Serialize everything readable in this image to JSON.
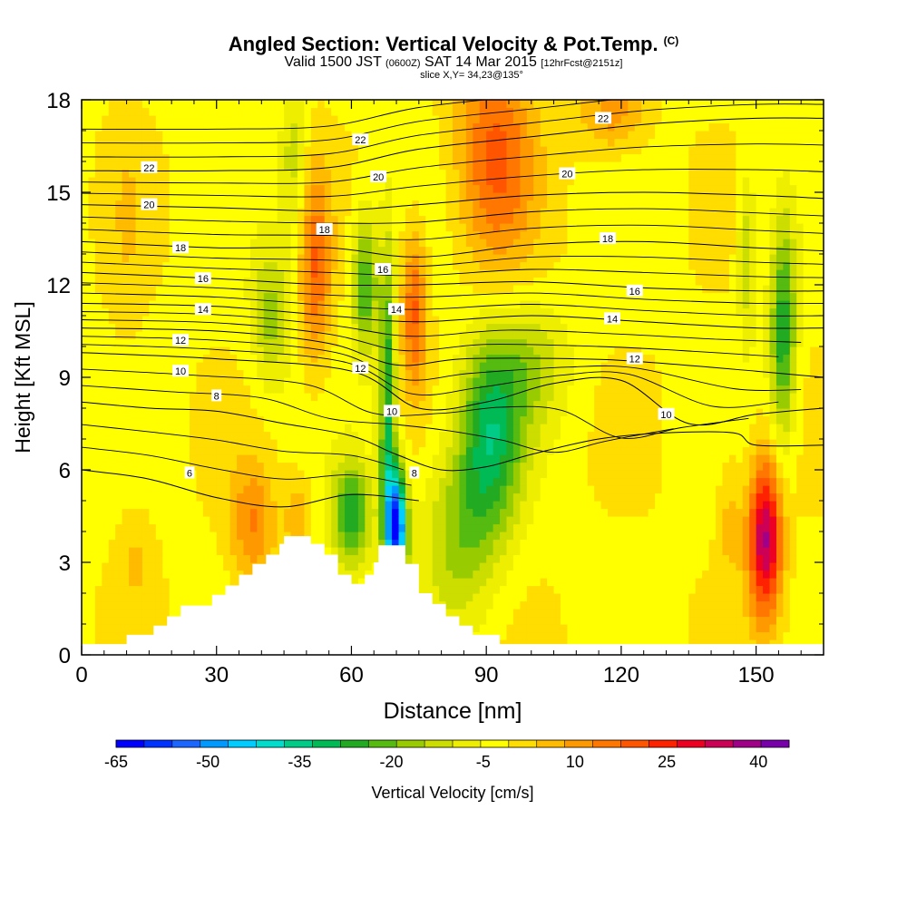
{
  "title": {
    "main": "Angled Section: Vertical Velocity & Pot.Temp.",
    "units": "(C)",
    "valid_prefix": "Valid 1500 JST",
    "valid_utc": "(0600Z)",
    "valid_date": "SAT 14 Mar 2015",
    "forecast": "[12hrFcst@2151z]",
    "slice": "slice X,Y= 34,23@135°"
  },
  "chart_data": {
    "type": "heatmap",
    "xlabel": "Distance [nm]",
    "ylabel": "Height [Kft MSL]",
    "xlim": [
      0,
      165
    ],
    "ylim": [
      0,
      18
    ],
    "x_ticks": [
      0,
      30,
      60,
      90,
      120,
      150
    ],
    "y_ticks": [
      0,
      3,
      6,
      9,
      12,
      15,
      18
    ],
    "terrain": [
      [
        0,
        0.35
      ],
      [
        10,
        0.35
      ],
      [
        10,
        0.65
      ],
      [
        16,
        0.65
      ],
      [
        16,
        0.95
      ],
      [
        19,
        0.95
      ],
      [
        19,
        1.25
      ],
      [
        22,
        1.25
      ],
      [
        22,
        1.6
      ],
      [
        29,
        1.6
      ],
      [
        29,
        1.95
      ],
      [
        32,
        1.95
      ],
      [
        32,
        2.25
      ],
      [
        35,
        2.25
      ],
      [
        35,
        2.6
      ],
      [
        38,
        2.6
      ],
      [
        38,
        2.95
      ],
      [
        41,
        2.95
      ],
      [
        41,
        3.25
      ],
      [
        44,
        3.25
      ],
      [
        44,
        3.6
      ],
      [
        45,
        3.6
      ],
      [
        45,
        3.85
      ],
      [
        51,
        3.85
      ],
      [
        51,
        3.6
      ],
      [
        54,
        3.6
      ],
      [
        54,
        3.25
      ],
      [
        57,
        3.25
      ],
      [
        57,
        2.6
      ],
      [
        60,
        2.6
      ],
      [
        60,
        2.3
      ],
      [
        63,
        2.3
      ],
      [
        63,
        2.6
      ],
      [
        65,
        2.6
      ],
      [
        65,
        3.0
      ],
      [
        66,
        3.0
      ],
      [
        66,
        3.55
      ],
      [
        72,
        3.55
      ],
      [
        72,
        2.95
      ],
      [
        75,
        2.95
      ],
      [
        75,
        2.0
      ],
      [
        78,
        2.0
      ],
      [
        78,
        1.65
      ],
      [
        81,
        1.65
      ],
      [
        81,
        1.25
      ],
      [
        84,
        1.25
      ],
      [
        84,
        0.95
      ],
      [
        87,
        0.95
      ],
      [
        87,
        0.65
      ],
      [
        93,
        0.65
      ],
      [
        93,
        0.35
      ],
      [
        165,
        0.35
      ]
    ],
    "colorbar": {
      "label": "Vertical Velocity [cm/s]",
      "tick_labels": [
        "-65",
        "-50",
        "-35",
        "-20",
        "-5",
        "10",
        "25",
        "40"
      ],
      "min": -65,
      "max": 45,
      "step": 5,
      "colors": [
        "#0000ff",
        "#0033ff",
        "#1a66ff",
        "#0099ff",
        "#00ccff",
        "#00ddcc",
        "#00cc88",
        "#00bb55",
        "#22aa22",
        "#55bb11",
        "#99cc00",
        "#ccdd00",
        "#eeee00",
        "#ffff00",
        "#ffdd00",
        "#ffbb00",
        "#ff9900",
        "#ff7700",
        "#ff5500",
        "#ff2200",
        "#ee0022",
        "#cc0055",
        "#a00088",
        "#7700aa"
      ]
    },
    "background_wind_cms": 4,
    "updrafts": [
      {
        "x": 92,
        "y": 16.2,
        "sx": 6,
        "sy": 2.6,
        "amp": 22
      },
      {
        "x": 118,
        "y": 17.6,
        "sx": 5,
        "sy": 0.9,
        "amp": 14
      },
      {
        "x": 52,
        "y": 12.5,
        "sx": 2.4,
        "sy": 2.2,
        "amp": 20
      },
      {
        "x": 74,
        "y": 11.2,
        "sx": 2.0,
        "sy": 1.8,
        "amp": 22
      },
      {
        "x": 152,
        "y": 3.8,
        "sx": 2.6,
        "sy": 1.8,
        "amp": 42
      },
      {
        "x": 38,
        "y": 4.2,
        "sx": 3.5,
        "sy": 1.4,
        "amp": 16
      },
      {
        "x": 48,
        "y": 4.5,
        "sx": 2,
        "sy": 1,
        "amp": 10
      },
      {
        "x": 12,
        "y": 3.2,
        "sx": 3,
        "sy": 1.2,
        "amp": 6
      },
      {
        "x": 144,
        "y": 4.5,
        "sx": 2,
        "sy": 1.5,
        "amp": 8
      },
      {
        "x": 10,
        "y": 14,
        "sx": 3,
        "sy": 3,
        "amp": 4
      }
    ],
    "downdrafts": [
      {
        "x": 70,
        "y": 4.2,
        "sx": 1.6,
        "sy": 1.3,
        "amp": -64
      },
      {
        "x": 68,
        "y": 8,
        "sx": 1.3,
        "sy": 3.5,
        "amp": -30
      },
      {
        "x": 63,
        "y": 12,
        "sx": 2,
        "sy": 1.6,
        "amp": -24
      },
      {
        "x": 60,
        "y": 4.5,
        "sx": 3,
        "sy": 1.2,
        "amp": -28
      },
      {
        "x": 91,
        "y": 7.2,
        "sx": 5,
        "sy": 2.2,
        "amp": -30
      },
      {
        "x": 84,
        "y": 4,
        "sx": 6,
        "sy": 2,
        "amp": -16
      },
      {
        "x": 42,
        "y": 11,
        "sx": 3,
        "sy": 1.6,
        "amp": -16
      },
      {
        "x": 47,
        "y": 16,
        "sx": 2,
        "sy": 2,
        "amp": -12
      },
      {
        "x": 156,
        "y": 10.5,
        "sx": 2,
        "sy": 2.5,
        "amp": -28
      },
      {
        "x": 148,
        "y": 13,
        "sx": 1.5,
        "sy": 2,
        "amp": -14
      },
      {
        "x": 100,
        "y": 9.5,
        "sx": 6,
        "sy": 1.5,
        "amp": -12
      }
    ],
    "isentropes": [
      {
        "theta": 6,
        "label": "6",
        "points": [
          [
            0,
            6
          ],
          [
            15,
            5.7
          ],
          [
            30,
            5.1
          ],
          [
            45,
            4.8
          ],
          [
            60,
            5.2
          ],
          [
            75,
            5.0
          ]
        ]
      },
      {
        "theta": 8,
        "label": "8",
        "points": [
          [
            0,
            8.2
          ],
          [
            15,
            8
          ],
          [
            30,
            7.9
          ],
          [
            45,
            7.5
          ],
          [
            60,
            7.1
          ],
          [
            70,
            6.5
          ],
          [
            80,
            6.0
          ],
          [
            90,
            6.1
          ],
          [
            100,
            6.5
          ],
          [
            115,
            7.0
          ],
          [
            130,
            7.2
          ],
          [
            145,
            7.2
          ],
          [
            150,
            6.8
          ],
          [
            165,
            6.8
          ]
        ]
      },
      {
        "theta": 10,
        "label": "10",
        "points": [
          [
            0,
            9.8
          ],
          [
            30,
            9.6
          ],
          [
            60,
            9.2
          ],
          [
            75,
            8.0
          ],
          [
            90,
            8.2
          ],
          [
            105,
            8.8
          ],
          [
            120,
            8.9
          ],
          [
            135,
            7.5
          ],
          [
            150,
            7.8
          ],
          [
            165,
            8
          ]
        ]
      },
      {
        "theta": 12,
        "label": "12",
        "points": [
          [
            0,
            10.6
          ],
          [
            30,
            10.5
          ],
          [
            55,
            10.1
          ],
          [
            70,
            9.4
          ],
          [
            85,
            9.6
          ],
          [
            110,
            9.6
          ],
          [
            125,
            9.5
          ],
          [
            150,
            9.2
          ],
          [
            165,
            9
          ]
        ]
      },
      {
        "theta": 14,
        "label": "14",
        "points": [
          [
            0,
            11.4
          ],
          [
            30,
            11.3
          ],
          [
            55,
            11.0
          ],
          [
            75,
            10.8
          ],
          [
            100,
            11.0
          ],
          [
            125,
            10.8
          ],
          [
            150,
            10.6
          ],
          [
            165,
            10.6
          ]
        ]
      },
      {
        "theta": 16,
        "label": "16",
        "points": [
          [
            0,
            12.4
          ],
          [
            30,
            12.2
          ],
          [
            55,
            12.0
          ],
          [
            75,
            12.0
          ],
          [
            100,
            12.1
          ],
          [
            125,
            11.9
          ],
          [
            150,
            11.8
          ],
          [
            165,
            11.8
          ]
        ]
      },
      {
        "theta": 18,
        "label": "18",
        "points": [
          [
            0,
            13.4
          ],
          [
            30,
            13.2
          ],
          [
            55,
            13.2
          ],
          [
            75,
            12.9
          ],
          [
            100,
            13.3
          ],
          [
            125,
            13.4
          ],
          [
            150,
            13.2
          ],
          [
            165,
            13.1
          ]
        ]
      },
      {
        "theta": 20,
        "label": "20",
        "points": [
          [
            0,
            14.6
          ],
          [
            30,
            14.5
          ],
          [
            55,
            14.4
          ],
          [
            75,
            14.6
          ],
          [
            100,
            14.9
          ],
          [
            125,
            15.0
          ],
          [
            150,
            14.9
          ],
          [
            165,
            14.8
          ]
        ]
      },
      {
        "theta": 22,
        "label": "22",
        "points": [
          [
            0,
            15.7
          ],
          [
            30,
            15.7
          ],
          [
            55,
            15.8
          ],
          [
            75,
            16.4
          ],
          [
            100,
            16.8
          ],
          [
            125,
            17.2
          ],
          [
            150,
            17.4
          ],
          [
            165,
            17.4
          ]
        ]
      }
    ],
    "isentrope_labels": [
      {
        "text": "22",
        "x": 15,
        "y": 15.8
      },
      {
        "text": "20",
        "x": 15,
        "y": 14.6
      },
      {
        "text": "18",
        "x": 22,
        "y": 13.2
      },
      {
        "text": "16",
        "x": 27,
        "y": 12.2
      },
      {
        "text": "14",
        "x": 27,
        "y": 11.2
      },
      {
        "text": "12",
        "x": 22,
        "y": 10.2
      },
      {
        "text": "10",
        "x": 22,
        "y": 9.2
      },
      {
        "text": "8",
        "x": 30,
        "y": 8.4
      },
      {
        "text": "6",
        "x": 24,
        "y": 5.9
      },
      {
        "text": "22",
        "x": 62,
        "y": 16.7
      },
      {
        "text": "20",
        "x": 66,
        "y": 15.5
      },
      {
        "text": "18",
        "x": 54,
        "y": 13.8
      },
      {
        "text": "16",
        "x": 67,
        "y": 12.5
      },
      {
        "text": "14",
        "x": 70,
        "y": 11.2
      },
      {
        "text": "12",
        "x": 62,
        "y": 9.3
      },
      {
        "text": "10",
        "x": 69,
        "y": 7.9
      },
      {
        "text": "8",
        "x": 74,
        "y": 5.9
      },
      {
        "text": "22",
        "x": 116,
        "y": 17.4
      },
      {
        "text": "20",
        "x": 108,
        "y": 15.6
      },
      {
        "text": "18",
        "x": 117,
        "y": 13.5
      },
      {
        "text": "16",
        "x": 123,
        "y": 11.8
      },
      {
        "text": "14",
        "x": 118,
        "y": 10.9
      },
      {
        "text": "12",
        "x": 123,
        "y": 9.6
      },
      {
        "text": "10",
        "x": 130,
        "y": 7.8
      }
    ]
  }
}
